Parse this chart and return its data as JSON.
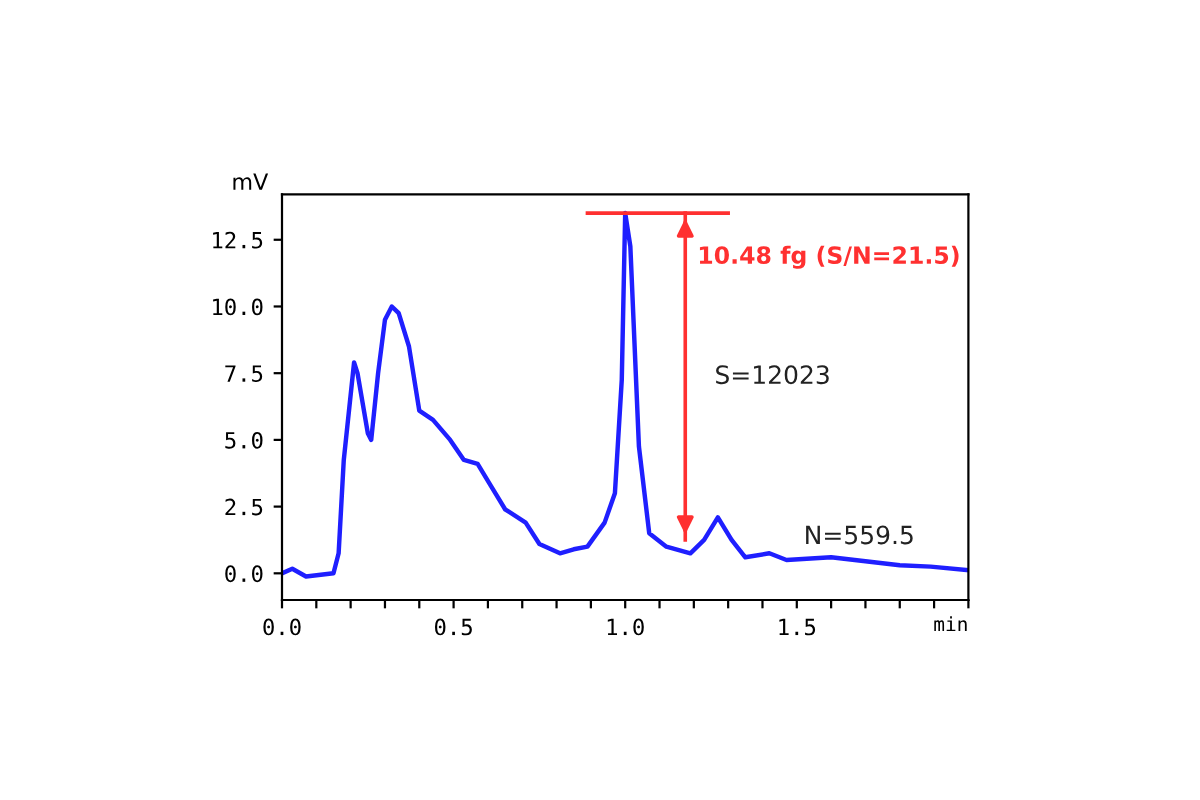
{
  "chart_data": {
    "type": "line",
    "xlabel": "min",
    "ylabel": "mV",
    "series": [
      {
        "color": "#1f1fff",
        "x": [
          0,
          0.03,
          0.07,
          0.15,
          0.165,
          0.18,
          0.21,
          0.22,
          0.25,
          0.26,
          0.28,
          0.3,
          0.32,
          0.34,
          0.37,
          0.4,
          0.44,
          0.49,
          0.53,
          0.57,
          0.61,
          0.65,
          0.71,
          0.75,
          0.81,
          0.85,
          0.89,
          0.94,
          0.97,
          0.99,
          1.0,
          1.015,
          1.04,
          1.07,
          1.12,
          1.19,
          1.23,
          1.27,
          1.31,
          1.35,
          1.42,
          1.47,
          1.6,
          1.7,
          1.8,
          1.89,
          2.0
        ],
        "values": [
          0,
          0.17,
          -0.12,
          0,
          0.75,
          4.25,
          7.9,
          7.5,
          5.25,
          5.0,
          7.5,
          9.5,
          10.0,
          9.75,
          8.5,
          6.1,
          5.75,
          5.0,
          4.25,
          4.1,
          3.25,
          2.4,
          1.9,
          1.1,
          0.75,
          0.9,
          1.0,
          1.9,
          3.0,
          7.25,
          13.5,
          12.25,
          4.75,
          1.5,
          1.0,
          0.75,
          1.25,
          2.1,
          1.25,
          0.6,
          0.75,
          0.5,
          0.6,
          0.45,
          0.3,
          0.25,
          0.12
        ]
      },
      {
        "color": "#ff3030",
        "x": [
          0.89,
          1.3
        ],
        "values": [
          13.5,
          13.5
        ]
      },
      {
        "color": "#ff3030",
        "x": [
          1.175,
          1.175
        ],
        "values": [
          13.5,
          1.25
        ]
      }
    ],
    "annotations": [
      "10.48 fg (S/N=21.5)",
      "S=12023",
      "N=559.5"
    ],
    "xlim": [
      0,
      2
    ],
    "ylim": [
      -1,
      14.2
    ],
    "xticks": [
      {
        "value": 0,
        "label": "0.0"
      },
      {
        "value": 0.1,
        "label": null
      },
      {
        "value": 0.2,
        "label": null
      },
      {
        "value": 0.3,
        "label": null
      },
      {
        "value": 0.4,
        "label": null
      },
      {
        "value": 0.5,
        "label": "0.5"
      },
      {
        "value": 0.6,
        "label": null
      },
      {
        "value": 0.7,
        "label": null
      },
      {
        "value": 0.8,
        "label": null
      },
      {
        "value": 0.9,
        "label": null
      },
      {
        "value": 1.0,
        "label": "1.0"
      },
      {
        "value": 1.1,
        "label": null
      },
      {
        "value": 1.2,
        "label": null
      },
      {
        "value": 1.3,
        "label": null
      },
      {
        "value": 1.4,
        "label": null
      },
      {
        "value": 1.5,
        "label": "1.5"
      },
      {
        "value": 1.6,
        "label": null
      },
      {
        "value": 1.7,
        "label": null
      },
      {
        "value": 1.8,
        "label": null
      },
      {
        "value": 1.9,
        "label": null
      },
      {
        "value": 2.0,
        "label": null
      }
    ],
    "yticks": [
      {
        "value": 0,
        "label": "0.0"
      },
      {
        "value": 2.5,
        "label": "2.5"
      },
      {
        "value": 5,
        "label": "5.0"
      },
      {
        "value": 7.5,
        "label": "7.5"
      },
      {
        "value": 10,
        "label": "10.0"
      },
      {
        "value": 12.5,
        "label": "12.5"
      }
    ],
    "grid": false,
    "legend": false,
    "marker": "none",
    "line_style": "solid"
  }
}
